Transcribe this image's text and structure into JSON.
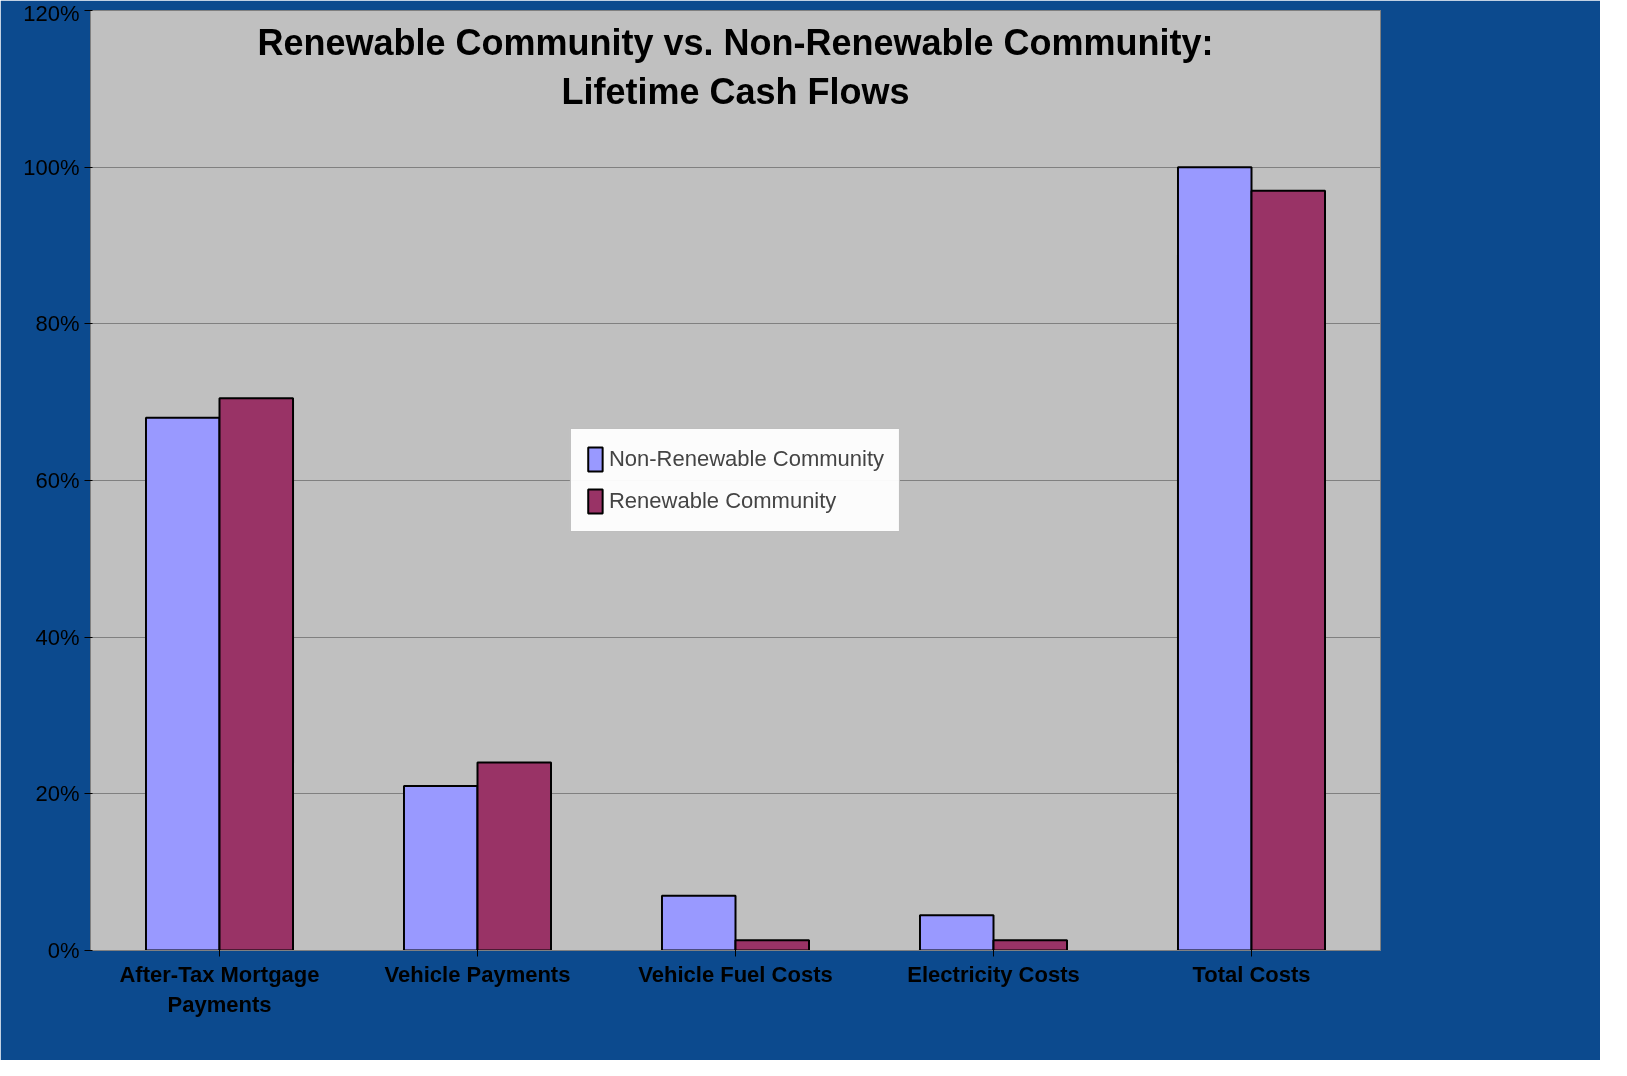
{
  "chart_data": {
    "type": "bar",
    "title": "Renewable Community vs. Non-Renewable Community:\nLifetime Cash Flows",
    "categories": [
      "After-Tax Mortgage\nPayments",
      "Vehicle Payments",
      "Vehicle Fuel Costs",
      "Electricity Costs",
      "Total Costs"
    ],
    "series": [
      {
        "name": "Non-Renewable Community",
        "color": "#9999ff",
        "values": [
          68,
          21,
          7,
          4.5,
          100
        ]
      },
      {
        "name": "Renewable Community",
        "color": "#993366",
        "values": [
          70.5,
          24,
          1.3,
          1.3,
          97
        ]
      }
    ],
    "ylim": [
      0,
      120
    ],
    "yticks": [
      {
        "value": 0,
        "label": "0%"
      },
      {
        "value": 20,
        "label": "20%"
      },
      {
        "value": 40,
        "label": "40%"
      },
      {
        "value": 60,
        "label": "60%"
      },
      {
        "value": 80,
        "label": "80%"
      },
      {
        "value": 100,
        "label": "100%"
      },
      {
        "value": 120,
        "label": "120%"
      }
    ],
    "grid": "y",
    "legend": "center"
  }
}
